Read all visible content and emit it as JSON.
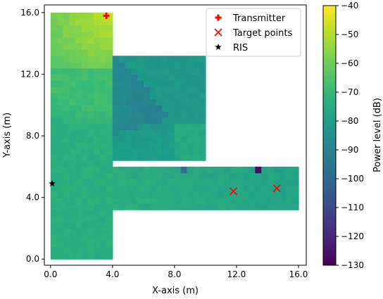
{
  "chart_data": {
    "type": "heatmap",
    "xlabel": "X-axis (m)",
    "ylabel": "Y-axis (m)",
    "xlim": [
      -0.4,
      16.5
    ],
    "ylim": [
      -0.4,
      16.5
    ],
    "xticks": [
      0.0,
      4.0,
      8.0,
      12.0,
      16.0
    ],
    "yticks": [
      0.0,
      4.0,
      8.0,
      12.0,
      16.0
    ],
    "xtick_labels": [
      "0.0",
      "4.0",
      "8.0",
      "12.0",
      "16.0"
    ],
    "ytick_labels": [
      "0.0",
      "4.0",
      "8.0",
      "12.0",
      "16.0"
    ],
    "cell_size_m": 0.4,
    "regions": [
      {
        "name": "vertical corridor",
        "x": [
          0.0,
          4.0
        ],
        "y": [
          0.0,
          16.0
        ]
      },
      {
        "name": "upper room",
        "x": [
          4.0,
          10.0
        ],
        "y": [
          6.4,
          13.2
        ]
      },
      {
        "name": "horizontal corridor",
        "x": [
          4.0,
          16.0
        ],
        "y": [
          3.2,
          6.0
        ]
      }
    ],
    "colorbar": {
      "label": "Power level (dB)",
      "min": -130,
      "max": -40,
      "colormap": "viridis",
      "ticks": [
        -40,
        -50,
        -60,
        -70,
        -80,
        -90,
        -100,
        -110,
        -120,
        -130
      ],
      "tick_labels": [
        "−40",
        "−50",
        "−60",
        "−70",
        "−80",
        "−90",
        "−100",
        "−110",
        "−120",
        "−130"
      ]
    },
    "markers": [
      {
        "label": "Transmitter",
        "symbol": "plus",
        "color": "#ff0000",
        "points": [
          [
            3.6,
            15.8
          ]
        ]
      },
      {
        "label": "Target points",
        "symbol": "x",
        "color": "#ff0000",
        "points": [
          [
            11.8,
            4.4
          ],
          [
            14.6,
            4.6
          ]
        ]
      },
      {
        "label": "RIS",
        "symbol": "star",
        "color": "#000000",
        "points": [
          [
            0.1,
            4.9
          ]
        ]
      }
    ],
    "legend": {
      "position": "top-right",
      "entries": [
        "Transmitter",
        "Target points",
        "RIS"
      ]
    }
  }
}
